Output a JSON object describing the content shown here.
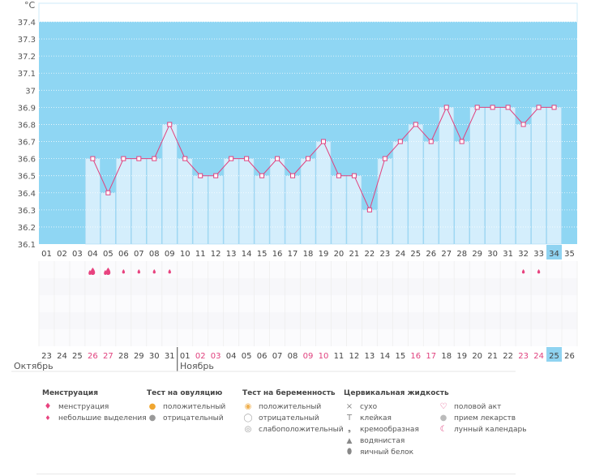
{
  "chart_data": {
    "type": "line",
    "unit_label": "°C",
    "ylim": [
      36.1,
      37.4
    ],
    "y_ticks": [
      "37.4",
      "37.3",
      "37.2",
      "37.1",
      "37",
      "36.9",
      "36.8",
      "36.7",
      "36.6",
      "36.5",
      "36.4",
      "36.3",
      "36.2",
      "36.1"
    ],
    "cycle_days": [
      "01",
      "02",
      "03",
      "04",
      "05",
      "06",
      "07",
      "08",
      "09",
      "10",
      "11",
      "12",
      "13",
      "14",
      "15",
      "16",
      "17",
      "18",
      "19",
      "20",
      "21",
      "22",
      "23",
      "24",
      "25",
      "26",
      "27",
      "28",
      "29",
      "30",
      "31",
      "32",
      "33",
      "34",
      "35"
    ],
    "dates": [
      "23",
      "24",
      "25",
      "26",
      "27",
      "28",
      "29",
      "30",
      "31",
      "01",
      "02",
      "03",
      "04",
      "05",
      "06",
      "07",
      "08",
      "09",
      "10",
      "11",
      "12",
      "13",
      "14",
      "15",
      "16",
      "17",
      "18",
      "19",
      "20",
      "21",
      "22",
      "23",
      "24",
      "25",
      "26"
    ],
    "weekend_date_index": [
      3,
      4,
      10,
      11,
      17,
      18,
      24,
      25,
      31,
      32
    ],
    "today_index": 33,
    "temperatures": [
      null,
      null,
      null,
      36.6,
      36.4,
      36.6,
      36.6,
      36.6,
      36.8,
      36.6,
      36.5,
      36.5,
      36.6,
      36.6,
      36.5,
      36.6,
      36.5,
      36.6,
      36.7,
      36.5,
      36.5,
      36.3,
      36.6,
      36.7,
      36.8,
      36.7,
      36.9,
      36.7,
      36.9,
      36.9,
      36.9,
      36.8,
      36.9,
      36.9,
      null
    ],
    "menstruation": [
      {
        "index": 3,
        "kind": "heavy"
      },
      {
        "index": 4,
        "kind": "heavy"
      },
      {
        "index": 5,
        "kind": "light"
      },
      {
        "index": 6,
        "kind": "light"
      },
      {
        "index": 7,
        "kind": "light"
      },
      {
        "index": 8,
        "kind": "light"
      },
      {
        "index": 31,
        "kind": "light"
      },
      {
        "index": 32,
        "kind": "light"
      }
    ],
    "months": [
      "Октябрь",
      "Ноябрь"
    ],
    "colors": {
      "sky": "#8fd6f3",
      "bar": "#d4eefc",
      "bar_border": "#a9d9f3",
      "line": "#e0417e",
      "today": "#8fd3f1",
      "drop": "#e8437f"
    }
  },
  "legend": {
    "menstruation": {
      "title": "Менструация",
      "items": [
        {
          "icon": "drop-heavy",
          "label": "менструация"
        },
        {
          "icon": "drop-light",
          "label": "небольшие выделения"
        }
      ]
    },
    "ovulation": {
      "title": "Тест на овуляцию",
      "items": [
        {
          "icon": "circle-positive",
          "label": "положительный"
        },
        {
          "icon": "circle-negative",
          "label": "отрицательный"
        }
      ]
    },
    "pregnancy": {
      "title": "Тест на беременность",
      "items": [
        {
          "icon": "circle-positive",
          "label": "положительный"
        },
        {
          "icon": "circle-negative",
          "label": "отрицательный"
        },
        {
          "icon": "circle-weak",
          "label": "слабоположительный"
        }
      ]
    },
    "cervical": {
      "title": "Цервикальная жидкость",
      "items": [
        {
          "icon": "cross",
          "label": "сухо"
        },
        {
          "icon": "t",
          "label": "клейкая"
        },
        {
          "icon": "comma",
          "label": "кремообразная"
        },
        {
          "icon": "drop",
          "label": "водянистая"
        },
        {
          "icon": "egg",
          "label": "яичный белок"
        }
      ]
    },
    "other": {
      "items": [
        {
          "icon": "heart",
          "label": "половой акт"
        },
        {
          "icon": "pill",
          "label": "прием лекарств"
        },
        {
          "icon": "moon",
          "label": "лунный календарь"
        }
      ]
    }
  }
}
